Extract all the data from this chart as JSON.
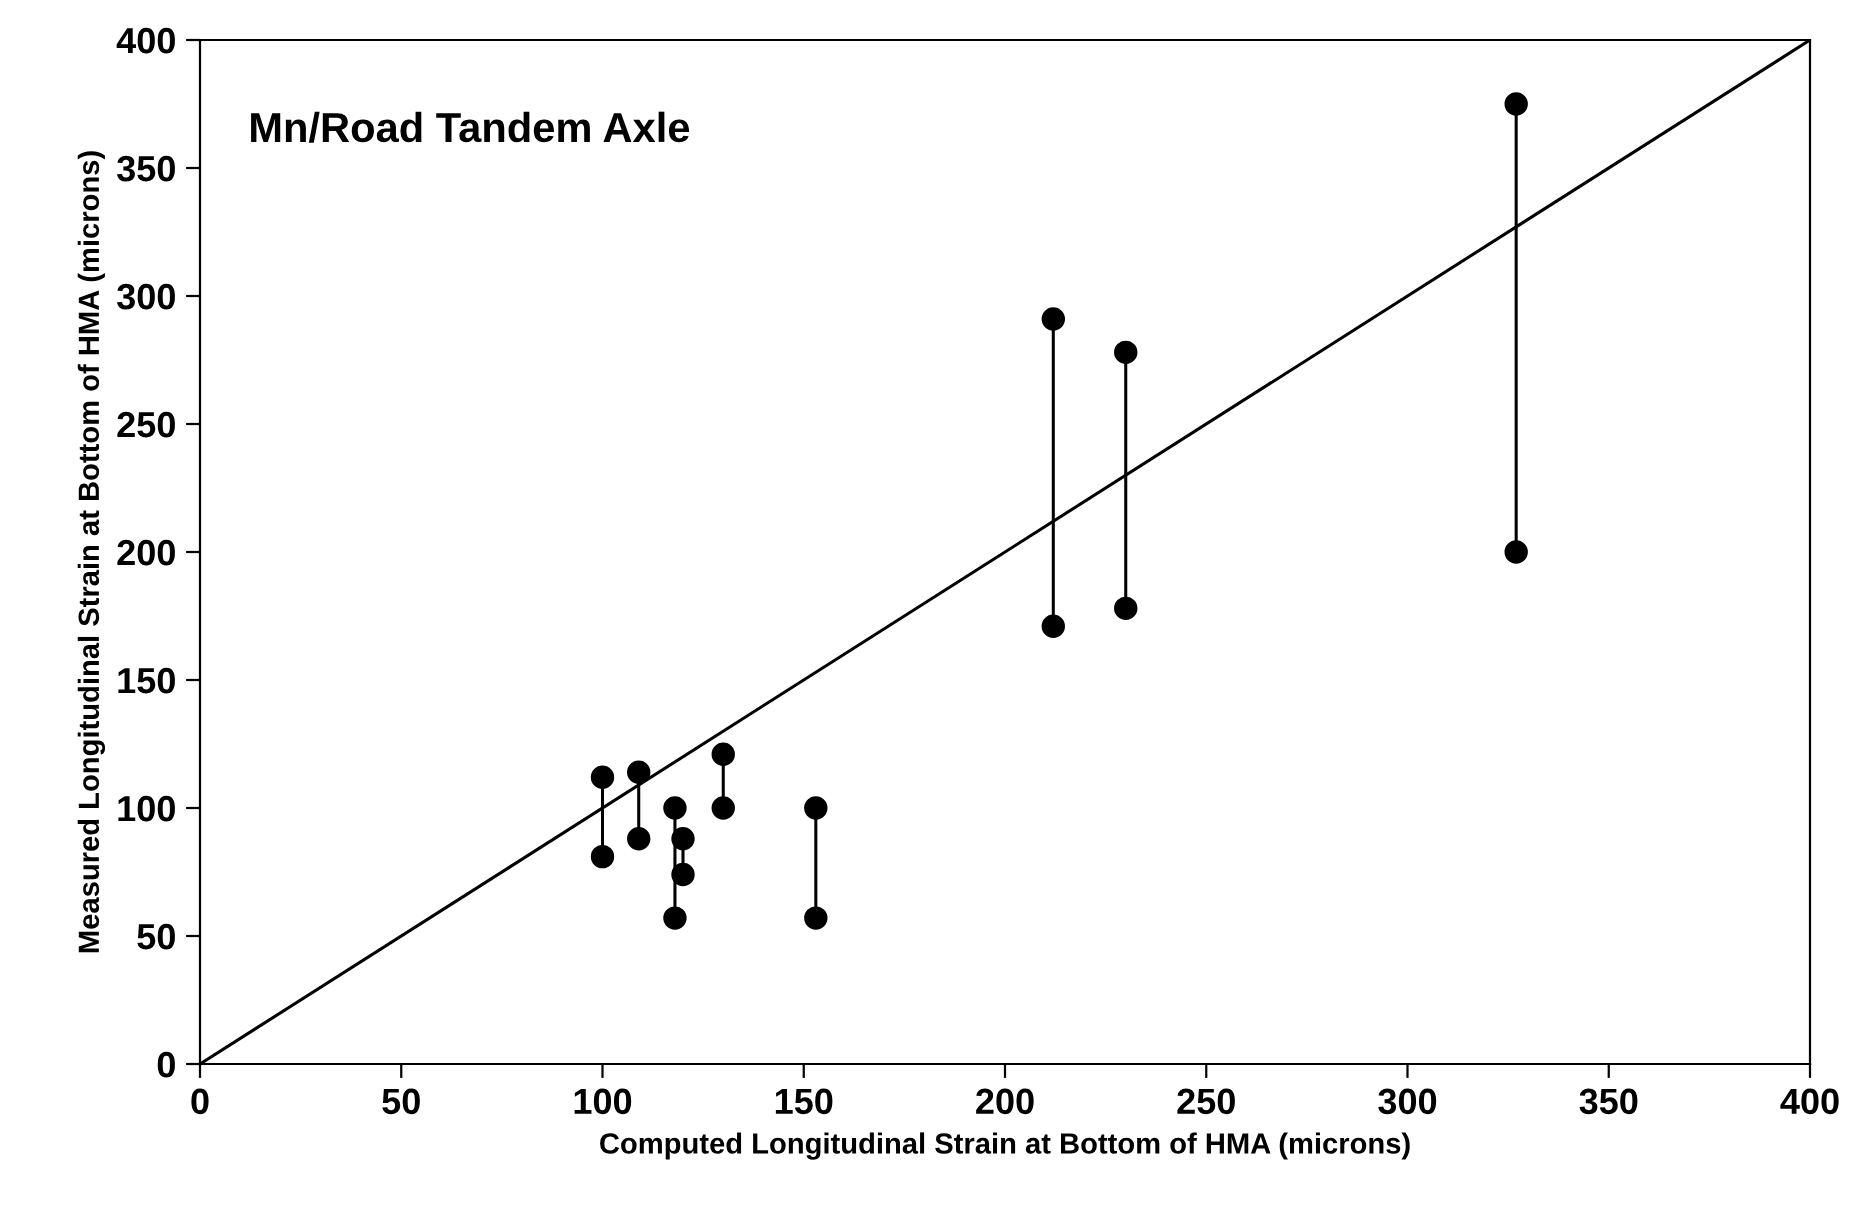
{
  "chart_data": {
    "type": "scatter",
    "title": "Mn/Road Tandem Axle",
    "xlabel": "Computed Longitudinal Strain at Bottom of HMA (microns)",
    "ylabel": "Measured Longitudinal Strain at Bottom of HMA (microns)",
    "x": [
      100,
      109,
      118,
      120,
      130,
      153,
      212,
      230,
      327
    ],
    "series": [
      {
        "color": "#000000",
        "marker": "circle",
        "values": [
          112,
          114,
          100,
          88,
          121,
          100,
          291,
          278,
          375
        ]
      },
      {
        "color": "#000000",
        "marker": "circle",
        "values": [
          81,
          88,
          57,
          74,
          100,
          57,
          171,
          178,
          200
        ]
      },
      {
        "type": "line",
        "color": "#000000",
        "x": [
          100,
          100
        ],
        "values": [
          81,
          112
        ]
      },
      {
        "type": "line",
        "color": "#000000",
        "x": [
          109,
          109
        ],
        "values": [
          88,
          114
        ]
      },
      {
        "type": "line",
        "color": "#000000",
        "x": [
          118,
          118
        ],
        "values": [
          57,
          100
        ]
      },
      {
        "type": "line",
        "color": "#000000",
        "x": [
          120,
          120
        ],
        "values": [
          74,
          88
        ]
      },
      {
        "type": "line",
        "color": "#000000",
        "x": [
          130,
          130
        ],
        "values": [
          100,
          121
        ]
      },
      {
        "type": "line",
        "color": "#000000",
        "x": [
          153,
          153
        ],
        "values": [
          57,
          100
        ]
      },
      {
        "type": "line",
        "color": "#000000",
        "x": [
          212,
          212
        ],
        "values": [
          171,
          291
        ]
      },
      {
        "type": "line",
        "color": "#000000",
        "x": [
          230,
          230
        ],
        "values": [
          178,
          278
        ]
      },
      {
        "type": "line",
        "color": "#000000",
        "x": [
          327,
          327
        ],
        "values": [
          200,
          375
        ]
      },
      {
        "type": "line",
        "color": "#000000",
        "x": [
          0,
          400
        ],
        "values": [
          0,
          400
        ]
      }
    ],
    "marker": "none",
    "xlim": [
      0,
      400
    ],
    "ylim": [
      0,
      400
    ],
    "xticks": [
      0,
      50,
      100,
      150,
      200,
      250,
      300,
      350,
      400
    ],
    "yticks": [
      0,
      50,
      100,
      150,
      200,
      250,
      300,
      350,
      400
    ],
    "grid": false,
    "legend": false
  }
}
